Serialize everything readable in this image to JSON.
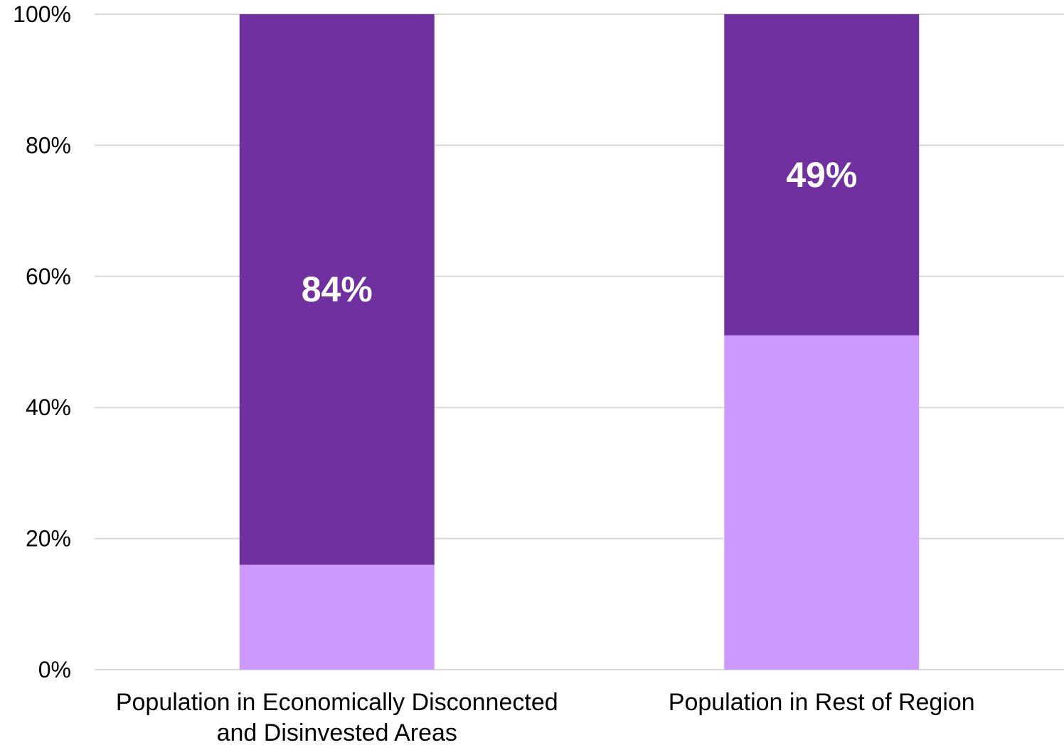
{
  "chart_data": {
    "type": "bar",
    "stacked": true,
    "categories": [
      [
        "Population in Economically Disconnected",
        "and Disinvested Areas"
      ],
      [
        "Population in Rest of Region"
      ]
    ],
    "series": [
      {
        "values": [
          16,
          51
        ],
        "color": "#cc99ff"
      },
      {
        "values": [
          84,
          49
        ],
        "color": "#70309f",
        "data_labels": [
          "84%",
          "49%"
        ]
      }
    ],
    "ylim": [
      0,
      100
    ],
    "yticks": [
      0,
      20,
      40,
      60,
      80,
      100
    ],
    "ytick_labels": [
      "0%",
      "20%",
      "40%",
      "60%",
      "80%",
      "100%"
    ],
    "grid": true,
    "title": "",
    "xlabel": "",
    "ylabel": ""
  }
}
